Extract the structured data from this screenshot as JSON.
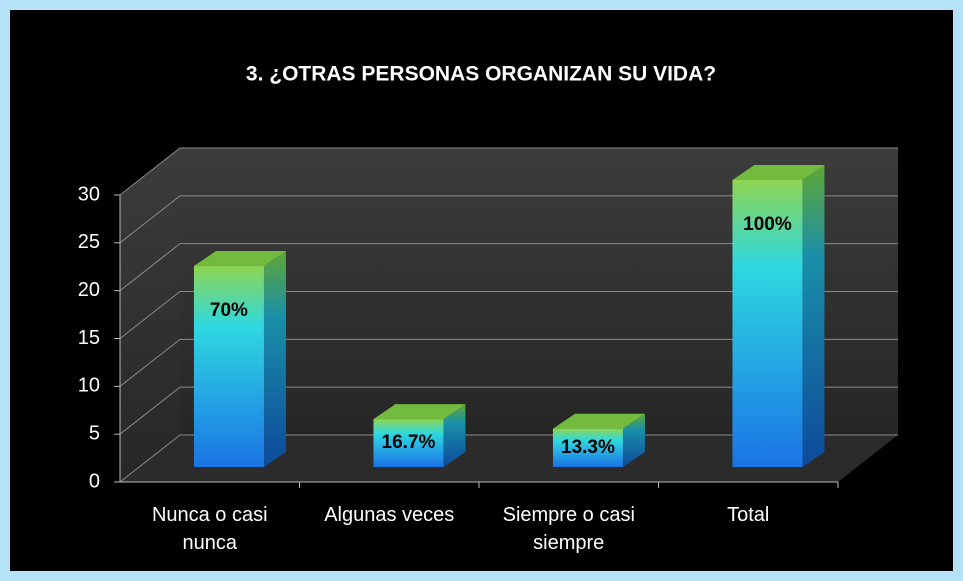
{
  "chart_data": {
    "type": "bar3d",
    "title": "3. ¿OTRAS PERSONAS ORGANIZAN SU VIDA?",
    "categories": [
      "Nunca o casi nunca",
      "Algunas veces",
      "Siempre o casi siempre",
      "Total"
    ],
    "values": [
      21,
      5,
      4,
      30
    ],
    "value_labels": [
      "70%",
      "16.7%",
      "13.3%",
      "100%"
    ],
    "ylim": [
      0,
      30
    ],
    "yticks": [
      0,
      5,
      10,
      15,
      20,
      25,
      30
    ],
    "grid": true
  }
}
